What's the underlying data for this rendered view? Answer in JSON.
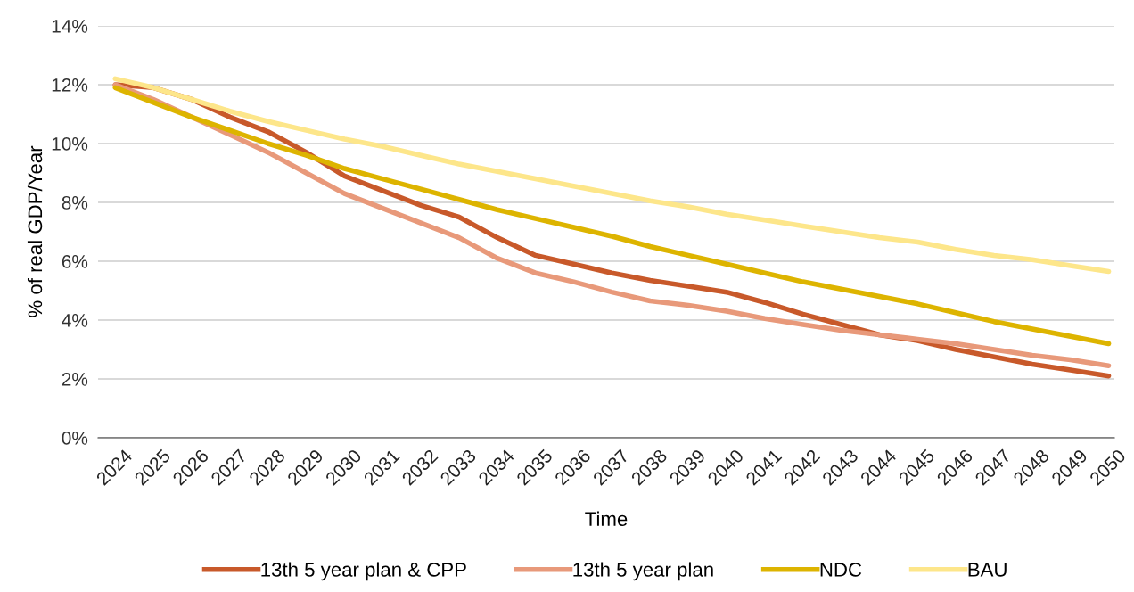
{
  "chart_data": {
    "type": "line",
    "xlabel": "Time",
    "ylabel": "% of real GDP/Year",
    "categories": [
      "2024",
      "2025",
      "2026",
      "2027",
      "2028",
      "2029",
      "2030",
      "2031",
      "2032",
      "2033",
      "2034",
      "2035",
      "2036",
      "2037",
      "2038",
      "2039",
      "2040",
      "2041",
      "2042",
      "2043",
      "2044",
      "2045",
      "2046",
      "2047",
      "2048",
      "2049",
      "2050"
    ],
    "series": [
      {
        "name": "13th 5 year plan & CPP",
        "color": "#c8592a",
        "values": [
          12.0,
          11.9,
          11.5,
          10.9,
          10.4,
          9.7,
          8.9,
          8.4,
          7.9,
          7.5,
          6.8,
          6.2,
          5.9,
          5.6,
          5.35,
          5.15,
          4.95,
          4.6,
          4.2,
          3.85,
          3.5,
          3.3,
          3.0,
          2.75,
          2.5,
          2.3,
          2.1
        ]
      },
      {
        "name": "13th 5 year plan",
        "color": "#e8997a",
        "values": [
          12.0,
          11.5,
          10.9,
          10.3,
          9.7,
          9.0,
          8.3,
          7.8,
          7.3,
          6.8,
          6.1,
          5.6,
          5.3,
          4.95,
          4.65,
          4.5,
          4.3,
          4.05,
          3.85,
          3.65,
          3.5,
          3.35,
          3.2,
          3.0,
          2.8,
          2.65,
          2.45
        ]
      },
      {
        "name": "NDC",
        "color": "#ddb400",
        "values": [
          11.9,
          11.4,
          10.9,
          10.45,
          10.0,
          9.6,
          9.15,
          8.8,
          8.45,
          8.1,
          7.75,
          7.45,
          7.15,
          6.85,
          6.5,
          6.2,
          5.9,
          5.6,
          5.3,
          5.05,
          4.8,
          4.55,
          4.25,
          3.95,
          3.7,
          3.45,
          3.2
        ]
      },
      {
        "name": "BAU",
        "color": "#fde68a",
        "values": [
          12.2,
          11.9,
          11.5,
          11.1,
          10.75,
          10.45,
          10.15,
          9.9,
          9.6,
          9.3,
          9.05,
          8.8,
          8.55,
          8.3,
          8.05,
          7.85,
          7.6,
          7.4,
          7.2,
          7.0,
          6.8,
          6.65,
          6.4,
          6.2,
          6.05,
          5.85,
          5.65
        ]
      }
    ],
    "ylim": [
      0,
      14
    ],
    "yticks": [
      {
        "value": 0,
        "label": "0%"
      },
      {
        "value": 2,
        "label": "2%"
      },
      {
        "value": 4,
        "label": "4%"
      },
      {
        "value": 6,
        "label": "6%"
      },
      {
        "value": 8,
        "label": "8%"
      },
      {
        "value": 10,
        "label": "10%"
      },
      {
        "value": 12,
        "label": "12%"
      },
      {
        "value": 14,
        "label": "14%"
      }
    ],
    "grid": "y",
    "legend": "bottom",
    "marker": "none",
    "line_style": "solid"
  }
}
